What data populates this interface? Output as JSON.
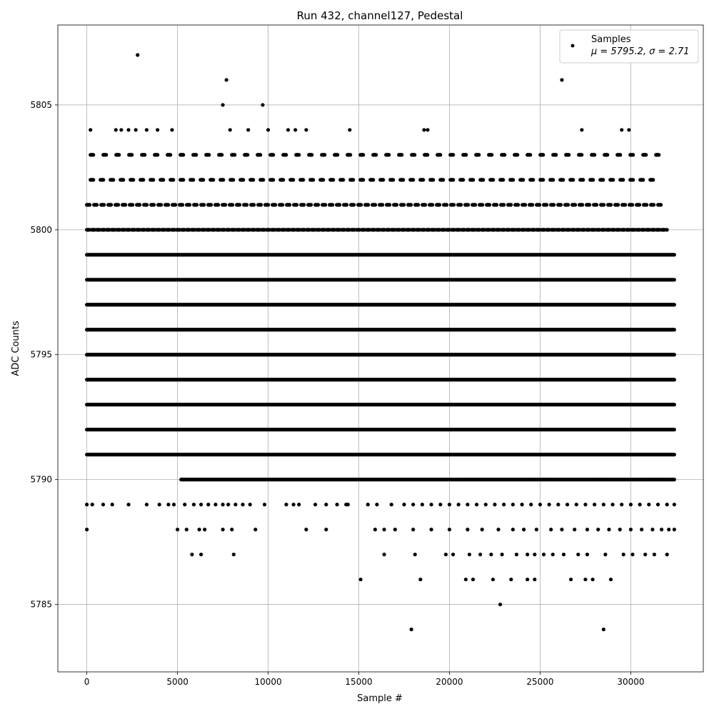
{
  "chart_data": {
    "type": "scatter",
    "title": "Run 432, channel127, Pedestal",
    "xlabel": "Sample #",
    "ylabel": "ADC Counts",
    "xlim": [
      -1600,
      34000
    ],
    "ylim": [
      5782.3,
      5808.2
    ],
    "xticks": [
      0,
      5000,
      10000,
      15000,
      20000,
      25000,
      30000
    ],
    "yticks": [
      5785,
      5790,
      5795,
      5800,
      5805
    ],
    "grid": true,
    "legend_position": "top-right",
    "series": [
      {
        "name": "Samples",
        "color": "#000000",
        "marker": "dot",
        "stats_label": "μ = 5795.2, σ = 2.71",
        "bands": [
          {
            "y": 5788,
            "x": [
              0,
              5000,
              5500,
              6200,
              6500,
              7500,
              8000,
              9300,
              12100,
              13200,
              15900,
              16400,
              17000,
              18000,
              19000,
              20000,
              21000,
              21800,
              22700,
              23500,
              24100,
              24800,
              25600,
              26200,
              26900,
              27600,
              28200,
              28800,
              29400,
              30000,
              30600,
              31200,
              31700,
              32100,
              32400
            ]
          },
          {
            "y": 5789,
            "x": [
              0,
              300,
              900,
              1400,
              2300,
              3300,
              4000,
              4500,
              4800,
              5400,
              5900,
              6300,
              6700,
              7100,
              7500,
              7800,
              8200,
              8600,
              9000,
              9800,
              11000,
              11400,
              11700,
              12600,
              13200,
              13800,
              14300,
              14400,
              15500,
              16000,
              16800,
              17500,
              18000,
              18500,
              19000,
              19500,
              20000,
              20500,
              21000,
              21500,
              22000,
              22500,
              23000,
              23500,
              24000,
              24500,
              25000,
              25500,
              26000,
              26500,
              27000,
              27500,
              28000,
              28500,
              29000,
              29500,
              30000,
              30500,
              31000,
              31500,
              32000,
              32400
            ]
          }
        ],
        "points": [
          {
            "x": 2800,
            "y": 5807
          },
          {
            "x": 7700,
            "y": 5806
          },
          {
            "x": 26200,
            "y": 5806
          },
          {
            "x": 7500,
            "y": 5805
          },
          {
            "x": 9700,
            "y": 5805
          },
          {
            "x": 17900,
            "y": 5784
          },
          {
            "x": 28500,
            "y": 5784
          },
          {
            "x": 22800,
            "y": 5785
          },
          {
            "x": 15100,
            "y": 5786
          },
          {
            "x": 18400,
            "y": 5786
          },
          {
            "x": 20900,
            "y": 5786
          },
          {
            "x": 21300,
            "y": 5786
          },
          {
            "x": 22400,
            "y": 5786
          },
          {
            "x": 23400,
            "y": 5786
          },
          {
            "x": 24300,
            "y": 5786
          },
          {
            "x": 24700,
            "y": 5786
          },
          {
            "x": 26700,
            "y": 5786
          },
          {
            "x": 27500,
            "y": 5786
          },
          {
            "x": 27900,
            "y": 5786
          },
          {
            "x": 28900,
            "y": 5786
          },
          {
            "x": 5800,
            "y": 5787
          },
          {
            "x": 6300,
            "y": 5787
          },
          {
            "x": 8100,
            "y": 5787
          },
          {
            "x": 16400,
            "y": 5787
          },
          {
            "x": 18100,
            "y": 5787
          },
          {
            "x": 19800,
            "y": 5787
          },
          {
            "x": 20200,
            "y": 5787
          },
          {
            "x": 21100,
            "y": 5787
          },
          {
            "x": 21700,
            "y": 5787
          },
          {
            "x": 22300,
            "y": 5787
          },
          {
            "x": 22900,
            "y": 5787
          },
          {
            "x": 23700,
            "y": 5787
          },
          {
            "x": 24300,
            "y": 5787
          },
          {
            "x": 24700,
            "y": 5787
          },
          {
            "x": 25200,
            "y": 5787
          },
          {
            "x": 25700,
            "y": 5787
          },
          {
            "x": 26300,
            "y": 5787
          },
          {
            "x": 27100,
            "y": 5787
          },
          {
            "x": 27600,
            "y": 5787
          },
          {
            "x": 28600,
            "y": 5787
          },
          {
            "x": 29600,
            "y": 5787
          },
          {
            "x": 30100,
            "y": 5787
          },
          {
            "x": 30800,
            "y": 5787
          },
          {
            "x": 31300,
            "y": 5787
          },
          {
            "x": 32000,
            "y": 5787
          },
          {
            "x": 200,
            "y": 5804
          },
          {
            "x": 1600,
            "y": 5804
          },
          {
            "x": 1900,
            "y": 5804
          },
          {
            "x": 2300,
            "y": 5804
          },
          {
            "x": 2700,
            "y": 5804
          },
          {
            "x": 3300,
            "y": 5804
          },
          {
            "x": 3900,
            "y": 5804
          },
          {
            "x": 4700,
            "y": 5804
          },
          {
            "x": 7900,
            "y": 5804
          },
          {
            "x": 8900,
            "y": 5804
          },
          {
            "x": 10000,
            "y": 5804
          },
          {
            "x": 11100,
            "y": 5804
          },
          {
            "x": 11500,
            "y": 5804
          },
          {
            "x": 12100,
            "y": 5804
          },
          {
            "x": 14500,
            "y": 5804
          },
          {
            "x": 18600,
            "y": 5804
          },
          {
            "x": 18800,
            "y": 5804
          },
          {
            "x": 27300,
            "y": 5804
          },
          {
            "x": 29500,
            "y": 5804
          },
          {
            "x": 29900,
            "y": 5804
          }
        ]
      }
    ]
  }
}
